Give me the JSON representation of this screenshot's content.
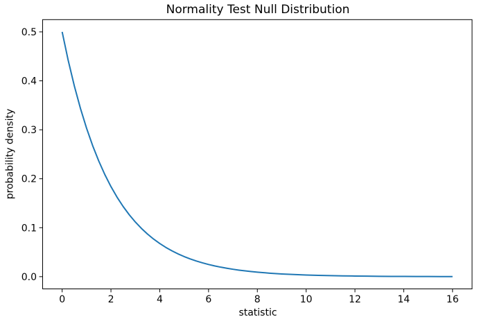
{
  "figure": {
    "title": "Normality Test Null Distribution",
    "xlabel": "statistic",
    "ylabel": "probability density"
  },
  "colors": {
    "line": "#1f77b4",
    "axes": "#000000",
    "text": "#000000",
    "background": "#ffffff"
  },
  "chart_data": {
    "type": "line",
    "title": "Normality Test Null Distribution",
    "xlabel": "statistic",
    "ylabel": "probability density",
    "xlim": [
      -0.8,
      16.8
    ],
    "ylim": [
      -0.025,
      0.525
    ],
    "xticks": [
      0,
      2,
      4,
      6,
      8,
      10,
      12,
      14,
      16
    ],
    "xtick_labels": [
      "0",
      "2",
      "4",
      "6",
      "8",
      "10",
      "12",
      "14",
      "16"
    ],
    "yticks": [
      0.0,
      0.1,
      0.2,
      0.3,
      0.4,
      0.5
    ],
    "ytick_labels": [
      "0.0",
      "0.1",
      "0.2",
      "0.3",
      "0.4",
      "0.5"
    ],
    "grid": false,
    "legend": null,
    "line_color": "#1f77b4",
    "series": [
      {
        "x": [
          0,
          0.25,
          0.5,
          0.75,
          1,
          1.25,
          1.5,
          1.75,
          2,
          2.25,
          2.5,
          2.75,
          3,
          3.25,
          3.5,
          3.75,
          4,
          4.25,
          4.5,
          4.75,
          5,
          5.25,
          5.5,
          5.75,
          6,
          6.25,
          6.5,
          6.75,
          7,
          7.25,
          7.5,
          7.75,
          8,
          8.5,
          9,
          9.5,
          10,
          10.5,
          11,
          11.5,
          12,
          12.5,
          13,
          13.5,
          14,
          14.5,
          15,
          15.5,
          16
        ],
        "y": [
          0.5,
          0.44125,
          0.3894,
          0.34364,
          0.30327,
          0.26763,
          0.23618,
          0.20843,
          0.18394,
          0.16233,
          0.14325,
          0.12642,
          0.11157,
          0.09846,
          0.08689,
          0.07668,
          0.06767,
          0.05972,
          0.0527,
          0.04651,
          0.04104,
          0.03622,
          0.03196,
          0.02821,
          0.02489,
          0.02197,
          0.01939,
          0.01711,
          0.0151,
          0.01332,
          0.01176,
          0.01038,
          0.00916,
          0.00713,
          0.00555,
          0.00433,
          0.00337,
          0.00262,
          0.00204,
          0.00159,
          0.00124,
          0.00097,
          0.00075,
          0.00059,
          0.00046,
          0.00036,
          0.00028,
          0.00021,
          0.00017
        ]
      }
    ]
  }
}
